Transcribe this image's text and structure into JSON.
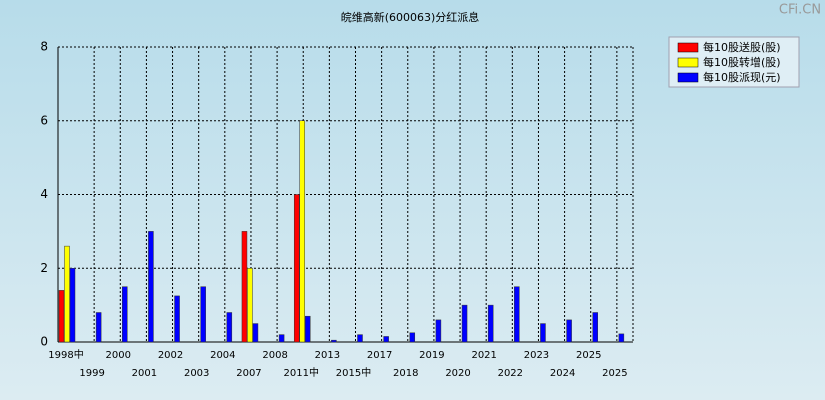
{
  "watermark": "CFi.CN",
  "chart_data": {
    "type": "bar",
    "title": "皖维高新(600063)分红派息",
    "categories": [
      "1998中",
      "1999",
      "2000",
      "2001",
      "2002",
      "2003",
      "2004",
      "2007",
      "2008",
      "2011中",
      "2013",
      "2015中",
      "2017",
      "2018",
      "2019",
      "2020",
      "2021",
      "2022",
      "2023",
      "2024",
      "2025",
      "2025"
    ],
    "series": [
      {
        "name": "每10股送股(股)",
        "color": "#ff0000",
        "values": [
          1.4,
          null,
          null,
          null,
          null,
          null,
          null,
          3.0,
          null,
          4.0,
          null,
          null,
          null,
          null,
          null,
          null,
          null,
          null,
          null,
          null,
          null,
          null
        ]
      },
      {
        "name": "每10股转增(股)",
        "color": "#ffff00",
        "values": [
          2.6,
          null,
          null,
          null,
          null,
          null,
          null,
          2.0,
          null,
          6.0,
          null,
          null,
          null,
          null,
          null,
          null,
          null,
          null,
          null,
          null,
          null,
          null
        ]
      },
      {
        "name": "每10股派现(元)",
        "color": "#0000ff",
        "values": [
          2.0,
          0.8,
          1.5,
          3.0,
          1.25,
          1.5,
          0.8,
          0.5,
          0.2,
          0.7,
          0.05,
          0.2,
          0.15,
          0.25,
          0.6,
          1.0,
          1.0,
          1.5,
          0.5,
          0.6,
          0.8,
          0.22
        ]
      }
    ],
    "ylim": [
      0,
      8
    ],
    "yticks": [
      0,
      2,
      4,
      6,
      8
    ],
    "grid": true,
    "legend": "top-right"
  }
}
